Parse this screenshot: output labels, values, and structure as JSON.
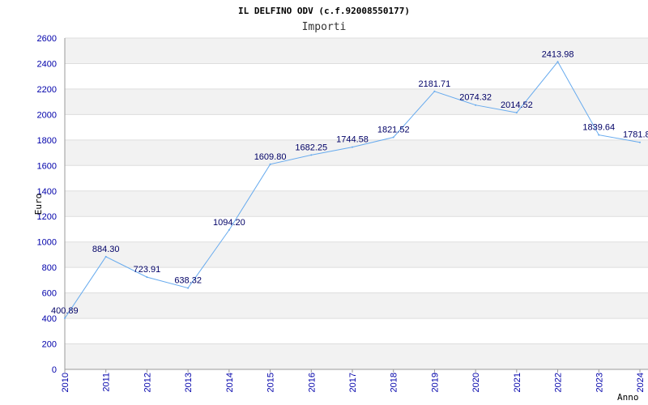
{
  "chart_data": {
    "type": "line",
    "title": "IL DELFINO ODV (c.f.92008550177)",
    "subtitle": "Importi",
    "ylabel": "Euro",
    "xlabel": "Anno",
    "ylim": [
      0,
      2600
    ],
    "yticks": [
      0,
      200,
      400,
      600,
      800,
      1000,
      1200,
      1400,
      1600,
      1800,
      2000,
      2200,
      2400,
      2600
    ],
    "grid": true,
    "colors": {
      "line": "#66aaee",
      "band": "#f2f2f2",
      "tick": "#0000aa",
      "label": "#000066"
    },
    "x": [
      "2010",
      "2011",
      "2012",
      "2013",
      "2014",
      "2015",
      "2016",
      "2017",
      "2018",
      "2019",
      "2020",
      "2021",
      "2022",
      "2023",
      "2024"
    ],
    "series": [
      {
        "values": [
          400.89,
          884.3,
          723.91,
          638.32,
          1094.2,
          1609.8,
          1682.25,
          1744.58,
          1821.52,
          2181.71,
          2074.32,
          2014.52,
          2413.98,
          1839.64,
          1781.8
        ],
        "labels": [
          "400.89",
          "884.30",
          "723.91",
          "638.32",
          "1094.20",
          "1609.80",
          "1682.25",
          "1744.58",
          "1821.52",
          "2181.71",
          "2074.32",
          "2014.52",
          "2413.98",
          "1839.64",
          "1781.8"
        ]
      }
    ]
  }
}
